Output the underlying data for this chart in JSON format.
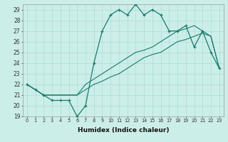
{
  "xlabel": "Humidex (Indice chaleur)",
  "bg_color": "#cceee8",
  "grid_color": "#aaddd8",
  "line_color": "#1a7a6e",
  "xlim": [
    -0.5,
    23.5
  ],
  "ylim": [
    19,
    29.5
  ],
  "xticks": [
    0,
    1,
    2,
    3,
    4,
    5,
    6,
    7,
    8,
    9,
    10,
    11,
    12,
    13,
    14,
    15,
    16,
    17,
    18,
    19,
    20,
    21,
    22,
    23
  ],
  "yticks": [
    19,
    20,
    21,
    22,
    23,
    24,
    25,
    26,
    27,
    28,
    29
  ],
  "line_zigzag_x": [
    0,
    1,
    2,
    3,
    4,
    5,
    6,
    7,
    8,
    9,
    10,
    11,
    12,
    13,
    14,
    15,
    16,
    17,
    18,
    19,
    20,
    21,
    22,
    23
  ],
  "line_zigzag_y": [
    22.0,
    21.5,
    21.0,
    20.5,
    20.5,
    20.5,
    19.0,
    20.0,
    24.0,
    27.0,
    28.5,
    29.0,
    28.5,
    29.5,
    28.5,
    29.0,
    28.5,
    27.0,
    27.0,
    27.5,
    25.5,
    27.0,
    25.0,
    23.5
  ],
  "line_upper_x": [
    0,
    1,
    2,
    3,
    4,
    5,
    6,
    7,
    8,
    9,
    10,
    11,
    12,
    13,
    14,
    15,
    16,
    17,
    18,
    19,
    20,
    21,
    22,
    23
  ],
  "line_upper_y": [
    22.0,
    21.5,
    21.0,
    21.0,
    21.0,
    21.0,
    21.0,
    22.0,
    22.5,
    23.0,
    23.5,
    24.0,
    24.5,
    25.0,
    25.2,
    25.5,
    26.0,
    26.5,
    27.0,
    27.2,
    27.5,
    27.0,
    26.5,
    23.5
  ],
  "line_lower_x": [
    0,
    1,
    2,
    3,
    4,
    5,
    6,
    7,
    8,
    9,
    10,
    11,
    12,
    13,
    14,
    15,
    16,
    17,
    18,
    19,
    20,
    21,
    22,
    23
  ],
  "line_lower_y": [
    22.0,
    21.5,
    21.0,
    21.0,
    21.0,
    21.0,
    21.0,
    21.5,
    22.0,
    22.3,
    22.7,
    23.0,
    23.5,
    24.0,
    24.5,
    24.8,
    25.0,
    25.5,
    26.0,
    26.2,
    26.5,
    26.8,
    26.5,
    23.5
  ]
}
